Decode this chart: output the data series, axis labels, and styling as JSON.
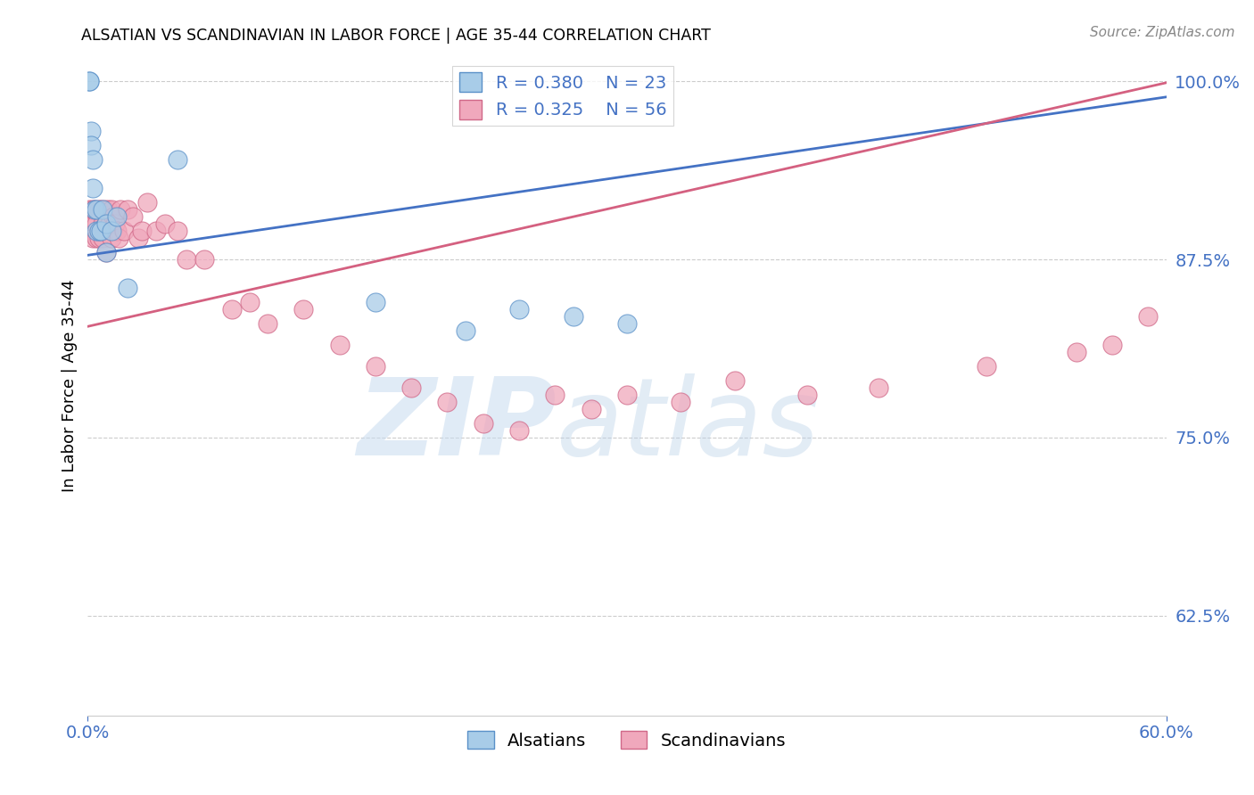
{
  "title": "ALSATIAN VS SCANDINAVIAN IN LABOR FORCE | AGE 35-44 CORRELATION CHART",
  "source": "Source: ZipAtlas.com",
  "ylabel": "In Labor Force | Age 35-44",
  "xlim_data": [
    0.0,
    0.6
  ],
  "ylim_data": [
    0.555,
    1.018
  ],
  "ytick_vals": [
    0.625,
    0.75,
    0.875,
    1.0
  ],
  "ytick_labels": [
    "62.5%",
    "75.0%",
    "87.5%",
    "100.0%"
  ],
  "legend_R_blue": "R = 0.380",
  "legend_N_blue": "N = 23",
  "legend_R_pink": "R = 0.325",
  "legend_N_pink": "N = 56",
  "blue_face": "#A8CCE8",
  "blue_edge": "#5A90C8",
  "pink_face": "#F0A8BC",
  "pink_edge": "#D06888",
  "blue_line": "#4472C4",
  "pink_line": "#D46080",
  "axis_label_color": "#4472C4",
  "grid_color": "#CCCCCC",
  "blue_line_intercept": 0.878,
  "blue_line_slope": 0.185,
  "pink_line_intercept": 0.828,
  "pink_line_slope": 0.285,
  "alsatian_x": [
    0.001,
    0.001,
    0.002,
    0.002,
    0.003,
    0.003,
    0.004,
    0.005,
    0.005,
    0.006,
    0.007,
    0.008,
    0.01,
    0.01,
    0.013,
    0.016,
    0.022,
    0.05,
    0.16,
    0.21,
    0.24,
    0.27,
    0.3
  ],
  "alsatian_y": [
    1.0,
    1.0,
    0.965,
    0.955,
    0.945,
    0.925,
    0.91,
    0.91,
    0.895,
    0.895,
    0.895,
    0.91,
    0.88,
    0.9,
    0.895,
    0.905,
    0.855,
    0.945,
    0.845,
    0.825,
    0.84,
    0.835,
    0.83
  ],
  "scandinavian_x": [
    0.001,
    0.002,
    0.003,
    0.003,
    0.004,
    0.005,
    0.005,
    0.006,
    0.006,
    0.007,
    0.008,
    0.008,
    0.009,
    0.01,
    0.01,
    0.011,
    0.012,
    0.013,
    0.013,
    0.014,
    0.015,
    0.016,
    0.017,
    0.018,
    0.02,
    0.022,
    0.025,
    0.028,
    0.03,
    0.033,
    0.038,
    0.043,
    0.05,
    0.055,
    0.065,
    0.08,
    0.09,
    0.1,
    0.12,
    0.14,
    0.16,
    0.18,
    0.2,
    0.22,
    0.24,
    0.26,
    0.28,
    0.3,
    0.33,
    0.36,
    0.4,
    0.44,
    0.5,
    0.55,
    0.57,
    0.59
  ],
  "scandinavian_y": [
    0.91,
    0.9,
    0.91,
    0.89,
    0.91,
    0.9,
    0.89,
    0.91,
    0.89,
    0.91,
    0.9,
    0.89,
    0.91,
    0.9,
    0.88,
    0.91,
    0.9,
    0.91,
    0.89,
    0.905,
    0.9,
    0.895,
    0.89,
    0.91,
    0.895,
    0.91,
    0.905,
    0.89,
    0.895,
    0.915,
    0.895,
    0.9,
    0.895,
    0.875,
    0.875,
    0.84,
    0.845,
    0.83,
    0.84,
    0.815,
    0.8,
    0.785,
    0.775,
    0.76,
    0.755,
    0.78,
    0.77,
    0.78,
    0.775,
    0.79,
    0.78,
    0.785,
    0.8,
    0.81,
    0.815,
    0.835
  ]
}
